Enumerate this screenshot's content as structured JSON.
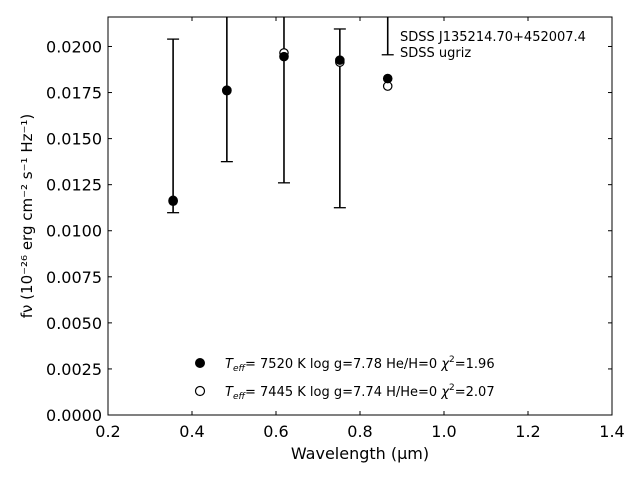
{
  "chart_data": {
    "type": "scatter",
    "title": "",
    "xlabel": "Wavelength (μm)",
    "ylabel": "fν (10⁻²⁶ erg cm⁻² s⁻¹ Hz⁻¹)",
    "xlim": [
      0.2,
      1.4
    ],
    "ylim": [
      0.0,
      0.0216
    ],
    "x_ticks": [
      0.2,
      0.4,
      0.6,
      0.8,
      1.0,
      1.2,
      1.4
    ],
    "x_tick_labels": [
      "0.2",
      "0.4",
      "0.6",
      "0.8",
      "1.0",
      "1.2",
      "1.4"
    ],
    "y_ticks": [
      0.0,
      0.0025,
      0.005,
      0.0075,
      0.01,
      0.0125,
      0.015,
      0.0175,
      0.02
    ],
    "y_tick_labels": [
      "0.0000",
      "0.0025",
      "0.0050",
      "0.0075",
      "0.0100",
      "0.0125",
      "0.0150",
      "0.0175",
      "0.0200"
    ],
    "grid": false,
    "annotation": [
      "SDSS J135214.70+452007.4",
      "SDSS ugriz"
    ],
    "observed": {
      "x": [
        0.355,
        0.483,
        0.619,
        0.752,
        0.866
      ],
      "y": [
        0.01163,
        0.0176,
        0.0194,
        0.01921,
        0.01826
      ],
      "yerr_low": [
        0.01098,
        0.01375,
        0.0126,
        0.01125,
        0.01955
      ],
      "yerr_high": [
        0.0204,
        0.0216,
        0.0216,
        0.02095,
        0.0216
      ]
    },
    "series": [
      {
        "name": "Teff= 7520 K log g=7.78 He/H=0 χ²=1.96",
        "marker": "filled",
        "x": [
          0.355,
          0.483,
          0.619,
          0.752,
          0.866
        ],
        "y": [
          0.0116,
          0.01763,
          0.01945,
          0.01926,
          0.01826
        ]
      },
      {
        "name": "Teff= 7445 K log g=7.74 H/He=0 χ²=2.07",
        "marker": "open",
        "x": [
          0.355,
          0.483,
          0.619,
          0.752,
          0.866
        ],
        "y": [
          0.01165,
          0.0176,
          0.01965,
          0.01915,
          0.01785
        ]
      }
    ],
    "legend_position": "lower-center",
    "legend": [
      {
        "teff_value": "7520 K",
        "rest": "log g=7.78  He/H=0",
        "chi_value": "=1.96"
      },
      {
        "teff_value": "7445 K",
        "rest": "log g=7.74  H/He=0",
        "chi_value": "=2.07"
      }
    ]
  }
}
